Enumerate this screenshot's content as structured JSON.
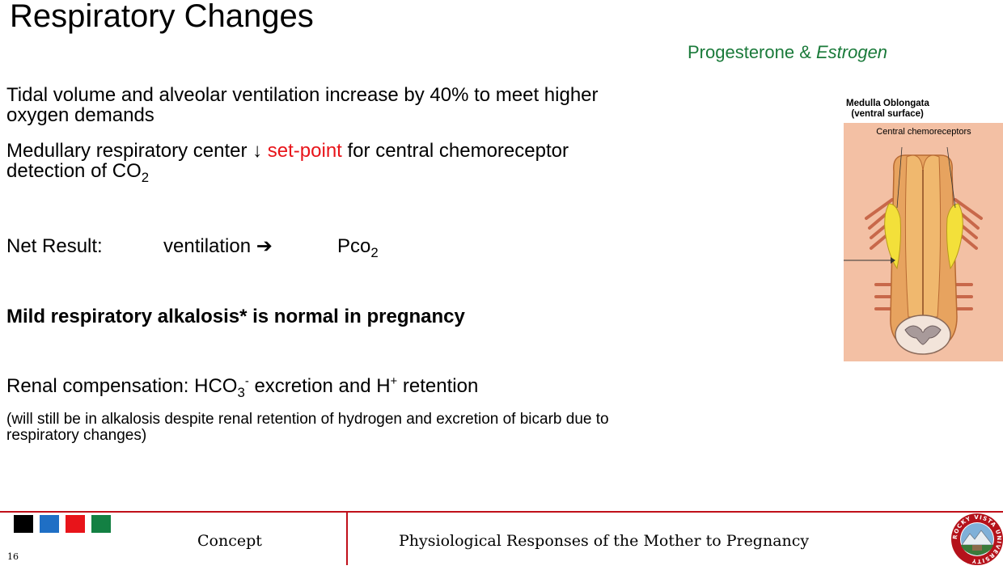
{
  "slide": {
    "title": "Respiratory Changes",
    "hormones": {
      "a": "Progesterone & ",
      "b": "Estrogen"
    },
    "p1": "Tidal volume and alveolar ventilation increase by 40% to meet higher oxygen demands",
    "p2": {
      "before": "Medullary respiratory center ↓ ",
      "red": "set-point",
      "after": " for central chemoreceptor detection of CO",
      "sub": "2"
    },
    "p3": {
      "label": "Net Result:",
      "ventilation": "ventilation ➔",
      "pco": "Pco",
      "pco_sub": "2"
    },
    "p4": "Mild respiratory alkalosis* is normal in pregnancy",
    "p5": {
      "a": "Renal compensation: HCO",
      "sub": "3",
      "sup": "-",
      "b": " excretion and H",
      "sup2": "+",
      "c": " retention"
    },
    "p6": "(will still be in alkalosis despite renal retention of hydrogen and excretion of bicarb due to respiratory changes)",
    "figure": {
      "title": "Medulla Oblongata\n  (ventral surface)",
      "label": "Central chemoreceptors"
    }
  },
  "footer": {
    "section": "Concept",
    "title": "Physiological Responses of the Mother to Pregnancy",
    "page": "16",
    "seal_text": "ROCKY VISTA UNIVERSITY",
    "square_colors": [
      "#000000",
      "#1f6fc5",
      "#e8141a",
      "#138043"
    ]
  }
}
